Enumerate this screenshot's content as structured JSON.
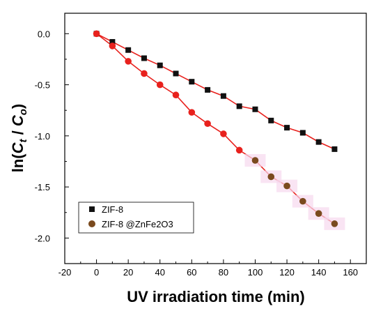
{
  "chart_data": {
    "type": "scatter",
    "title": "",
    "xlabel": "UV irradiation time  (min)",
    "ylabel": {
      "prefix": "ln(",
      "c1": "C",
      "s1": "t",
      "sep": " / ",
      "c2": "C",
      "s2": "o",
      "suffix": ")"
    },
    "xlim": [
      -20,
      170
    ],
    "ylim": [
      -2.25,
      0.2
    ],
    "xticks": [
      -20,
      0,
      20,
      40,
      60,
      80,
      100,
      120,
      140,
      160
    ],
    "yticks": [
      0.0,
      -0.5,
      -1.0,
      -1.5,
      -2.0
    ],
    "xtick_labels": [
      "-20",
      "0",
      "20",
      "40",
      "60",
      "80",
      "100",
      "120",
      "140",
      "160"
    ],
    "ytick_labels": [
      "0.0",
      "-0.5",
      "-1.0",
      "-1.5",
      "-2.0"
    ],
    "legend_position": "bottom-left",
    "series": [
      {
        "name": "ZIF-8",
        "marker": "square",
        "color": "#111111",
        "fit_color": "#e8211d",
        "x": [
          0,
          10,
          20,
          30,
          40,
          50,
          60,
          70,
          80,
          90,
          100,
          110,
          120,
          130,
          140,
          150
        ],
        "y": [
          0.0,
          -0.08,
          -0.16,
          -0.24,
          -0.31,
          -0.39,
          -0.47,
          -0.55,
          -0.61,
          -0.71,
          -0.74,
          -0.85,
          -0.92,
          -0.97,
          -1.06,
          -1.13
        ]
      },
      {
        "name": "ZIF-8 @ZnFe2O3",
        "marker": "circle",
        "color": "#7a4a1e",
        "early_color": "#e8211d",
        "fit_color": "#e8211d",
        "x": [
          0,
          10,
          20,
          30,
          40,
          50,
          60,
          70,
          80,
          90,
          100,
          110,
          120,
          130,
          140,
          150
        ],
        "y": [
          0.0,
          -0.12,
          -0.27,
          -0.39,
          -0.5,
          -0.6,
          -0.77,
          -0.88,
          -0.98,
          -1.14,
          -1.24,
          -1.4,
          -1.49,
          -1.64,
          -1.76,
          -1.86
        ]
      }
    ],
    "grid": false
  }
}
